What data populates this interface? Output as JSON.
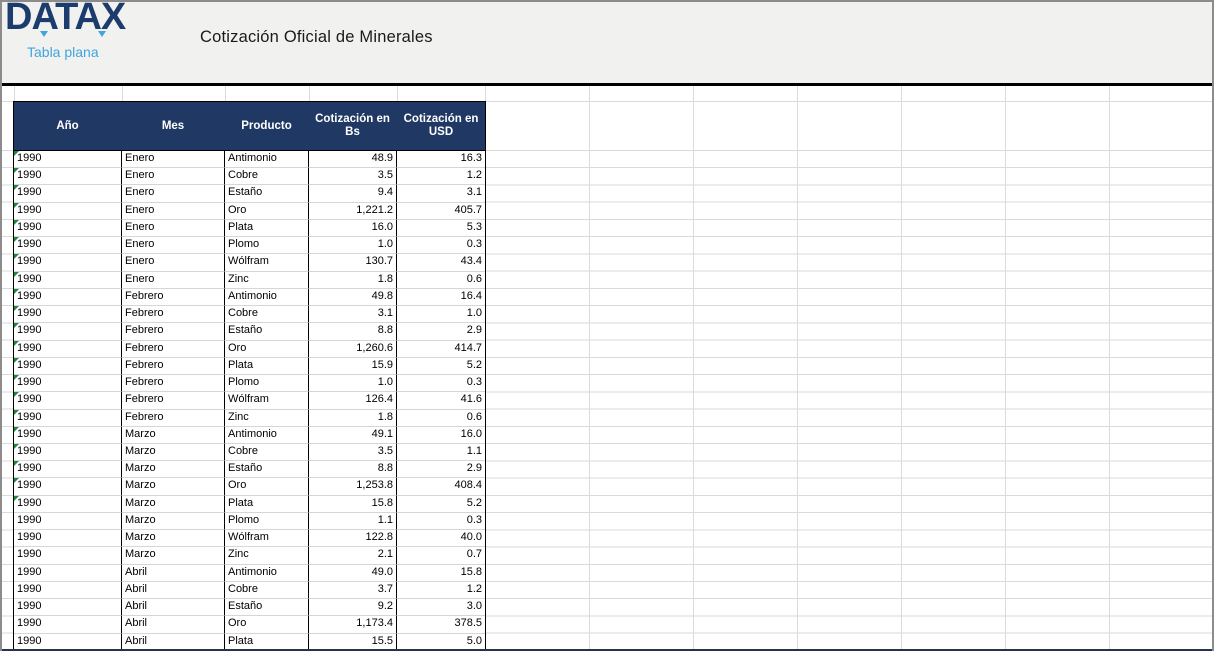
{
  "header": {
    "logo_text": "DATAX",
    "logo_subtitle": "Tabla plana",
    "title": "Cotización Oficial de Minerales"
  },
  "table": {
    "columns": [
      "Año",
      "Mes",
      "Producto",
      "Cotización en Bs",
      "Cotización en USD"
    ],
    "rows": [
      {
        "ano": "1990",
        "mes": "Enero",
        "producto": "Antimonio",
        "bs": "48.9",
        "usd": "16.3",
        "marker": true
      },
      {
        "ano": "1990",
        "mes": "Enero",
        "producto": "Cobre",
        "bs": "3.5",
        "usd": "1.2",
        "marker": true
      },
      {
        "ano": "1990",
        "mes": "Enero",
        "producto": "Estaño",
        "bs": "9.4",
        "usd": "3.1",
        "marker": true
      },
      {
        "ano": "1990",
        "mes": "Enero",
        "producto": "Oro",
        "bs": "1,221.2",
        "usd": "405.7",
        "marker": true
      },
      {
        "ano": "1990",
        "mes": "Enero",
        "producto": "Plata",
        "bs": "16.0",
        "usd": "5.3",
        "marker": true
      },
      {
        "ano": "1990",
        "mes": "Enero",
        "producto": "Plomo",
        "bs": "1.0",
        "usd": "0.3",
        "marker": true
      },
      {
        "ano": "1990",
        "mes": "Enero",
        "producto": "Wólfram",
        "bs": "130.7",
        "usd": "43.4",
        "marker": true
      },
      {
        "ano": "1990",
        "mes": "Enero",
        "producto": "Zinc",
        "bs": "1.8",
        "usd": "0.6",
        "marker": true
      },
      {
        "ano": "1990",
        "mes": "Febrero",
        "producto": "Antimonio",
        "bs": "49.8",
        "usd": "16.4",
        "marker": true
      },
      {
        "ano": "1990",
        "mes": "Febrero",
        "producto": "Cobre",
        "bs": "3.1",
        "usd": "1.0",
        "marker": true
      },
      {
        "ano": "1990",
        "mes": "Febrero",
        "producto": "Estaño",
        "bs": "8.8",
        "usd": "2.9",
        "marker": true
      },
      {
        "ano": "1990",
        "mes": "Febrero",
        "producto": "Oro",
        "bs": "1,260.6",
        "usd": "414.7",
        "marker": true
      },
      {
        "ano": "1990",
        "mes": "Febrero",
        "producto": "Plata",
        "bs": "15.9",
        "usd": "5.2",
        "marker": true
      },
      {
        "ano": "1990",
        "mes": "Febrero",
        "producto": "Plomo",
        "bs": "1.0",
        "usd": "0.3",
        "marker": true
      },
      {
        "ano": "1990",
        "mes": "Febrero",
        "producto": "Wólfram",
        "bs": "126.4",
        "usd": "41.6",
        "marker": true
      },
      {
        "ano": "1990",
        "mes": "Febrero",
        "producto": "Zinc",
        "bs": "1.8",
        "usd": "0.6",
        "marker": true
      },
      {
        "ano": "1990",
        "mes": "Marzo",
        "producto": "Antimonio",
        "bs": "49.1",
        "usd": "16.0",
        "marker": true
      },
      {
        "ano": "1990",
        "mes": "Marzo",
        "producto": "Cobre",
        "bs": "3.5",
        "usd": "1.1",
        "marker": true
      },
      {
        "ano": "1990",
        "mes": "Marzo",
        "producto": "Estaño",
        "bs": "8.8",
        "usd": "2.9",
        "marker": true
      },
      {
        "ano": "1990",
        "mes": "Marzo",
        "producto": "Oro",
        "bs": "1,253.8",
        "usd": "408.4",
        "marker": true
      },
      {
        "ano": "1990",
        "mes": "Marzo",
        "producto": "Plata",
        "bs": "15.8",
        "usd": "5.2",
        "marker": true
      },
      {
        "ano": "1990",
        "mes": "Marzo",
        "producto": "Plomo",
        "bs": "1.1",
        "usd": "0.3",
        "marker": false
      },
      {
        "ano": "1990",
        "mes": "Marzo",
        "producto": "Wólfram",
        "bs": "122.8",
        "usd": "40.0",
        "marker": false
      },
      {
        "ano": "1990",
        "mes": "Marzo",
        "producto": "Zinc",
        "bs": "2.1",
        "usd": "0.7",
        "marker": false
      },
      {
        "ano": "1990",
        "mes": "Abril",
        "producto": "Antimonio",
        "bs": "49.0",
        "usd": "15.8",
        "marker": false
      },
      {
        "ano": "1990",
        "mes": "Abril",
        "producto": "Cobre",
        "bs": "3.7",
        "usd": "1.2",
        "marker": false
      },
      {
        "ano": "1990",
        "mes": "Abril",
        "producto": "Estaño",
        "bs": "9.2",
        "usd": "3.0",
        "marker": false
      },
      {
        "ano": "1990",
        "mes": "Abril",
        "producto": "Oro",
        "bs": "1,173.4",
        "usd": "378.5",
        "marker": false
      },
      {
        "ano": "1990",
        "mes": "Abril",
        "producto": "Plata",
        "bs": "15.5",
        "usd": "5.0",
        "marker": false
      }
    ]
  },
  "colors": {
    "header_navy": "#1F3864",
    "logo_navy": "#1C3C6E",
    "logo_blue": "#3FA5DC",
    "marker_green": "#1E8A3C",
    "band_bg": "#F1F1F0",
    "gridline": "#DADADA",
    "bottom_bar": "#26324E"
  }
}
